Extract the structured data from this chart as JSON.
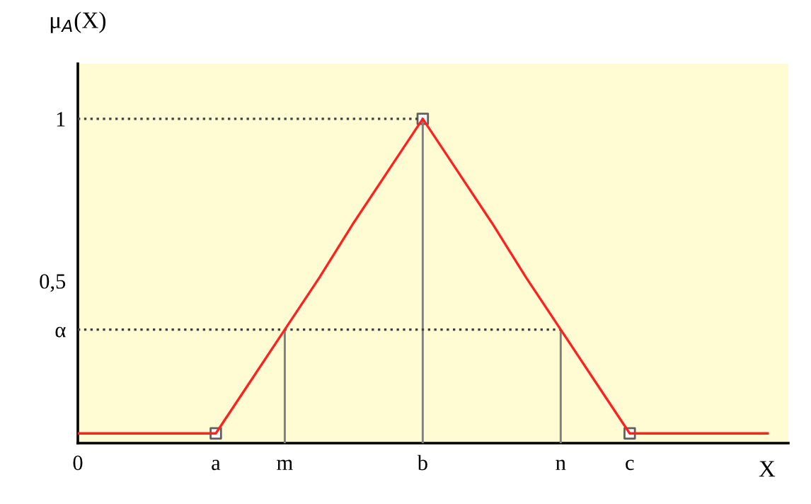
{
  "chart_data": {
    "type": "line",
    "xlabel": "X",
    "ylabel": "μ$_{A}$(X)",
    "categories": [
      "0",
      null,
      null,
      null,
      "a",
      null,
      "m",
      null,
      null,
      null,
      "b",
      null,
      null,
      null,
      "n",
      null,
      "c",
      null,
      null,
      null,
      null
    ],
    "ylim": [
      0,
      1.17
    ],
    "yticks": [
      {
        "value": 0.35,
        "label": "α"
      },
      {
        "value": 0.5,
        "label": "0,5"
      },
      1
    ],
    "grid": false,
    "legend": false,
    "series": [
      {
        "type": "line",
        "values": [
          1,
          1,
          1,
          1,
          1,
          1,
          1,
          1,
          1,
          1,
          1,
          null,
          null,
          null,
          null,
          null,
          null,
          null,
          null,
          null,
          null
        ],
        "color": "#404040",
        "line_style": "dotted"
      },
      {
        "type": "line",
        "values": [
          0.35,
          0.35,
          0.35,
          0.35,
          0.35,
          0.35,
          0.35,
          0.35,
          0.35,
          0.35,
          0.35,
          0.35,
          0.35,
          0.35,
          0.35,
          null,
          null,
          null,
          null,
          null,
          null
        ],
        "color": "#404040",
        "line_style": "dotted"
      },
      {
        "type": "bar",
        "values": [
          null,
          null,
          null,
          null,
          null,
          null,
          0.35,
          null,
          null,
          null,
          1,
          null,
          null,
          null,
          0.35,
          null,
          null,
          null,
          null,
          null,
          null
        ],
        "color": "#808080"
      },
      {
        "values": [
          0.03,
          0.03,
          0.03,
          0.03,
          0.03,
          0.19,
          0.35,
          0.51,
          0.68,
          0.84,
          1,
          0.84,
          0.68,
          0.51,
          0.35,
          0.19,
          0.03,
          0.03,
          0.03,
          0.03,
          0.03
        ],
        "color": "#ff2020",
        "line_style": "solid"
      },
      {
        "type": "scatter",
        "values": [
          null,
          null,
          null,
          null,
          0.03,
          null,
          null,
          null,
          null,
          null,
          1,
          null,
          null,
          null,
          null,
          null,
          0.03,
          null,
          null,
          null,
          null
        ],
        "color": "#606060",
        "marker": "square"
      }
    ]
  }
}
